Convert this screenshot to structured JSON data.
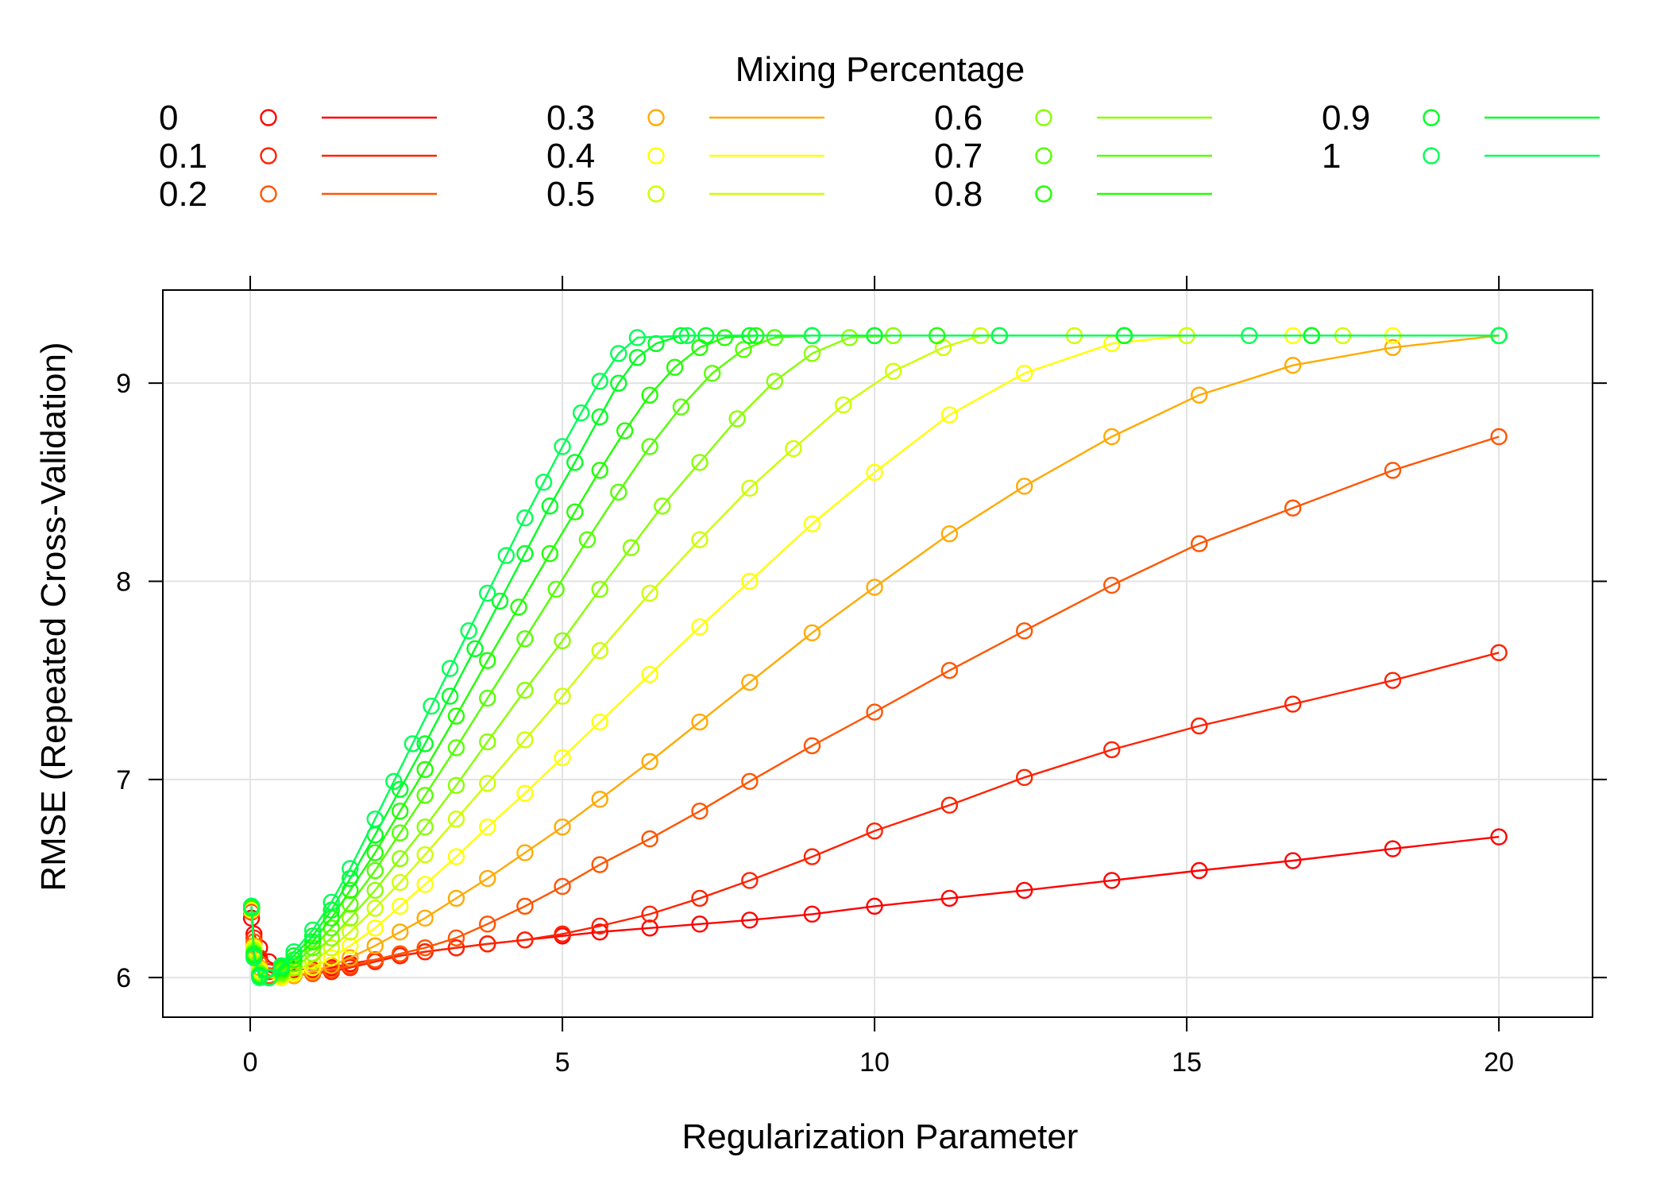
{
  "chart_data": {
    "type": "line",
    "title": "",
    "xlabel": "Regularization Parameter",
    "ylabel": "RMSE (Repeated Cross-Validation)",
    "xlim": [
      -1.4,
      21.5
    ],
    "ylim": [
      5.8,
      9.47
    ],
    "x_ticks": [
      0,
      5,
      10,
      15,
      20
    ],
    "y_ticks": [
      6,
      7,
      8,
      9
    ],
    "grid": true,
    "markers": "open-circle",
    "legend": {
      "title": "Mixing Percentage",
      "placement": "top",
      "columns": 4,
      "entries": [
        "0",
        "0.1",
        "0.2",
        "0.3",
        "0.4",
        "0.5",
        "0.6",
        "0.7",
        "0.8",
        "0.9",
        "1"
      ]
    },
    "series": [
      {
        "name": "0",
        "color": "#FF0000",
        "x": [
          0.02,
          0.06,
          0.15,
          0.3,
          0.5,
          0.7,
          1.0,
          1.3,
          1.6,
          2.0,
          2.4,
          2.8,
          3.3,
          3.8,
          4.4,
          5.0,
          5.6,
          6.4,
          7.2,
          8.0,
          9.0,
          10.0,
          11.2,
          12.4,
          13.8,
          15.2,
          16.7,
          18.3,
          20.0
        ],
        "values": [
          6.3,
          6.22,
          6.15,
          6.08,
          6.05,
          6.04,
          6.04,
          6.05,
          6.07,
          6.09,
          6.11,
          6.13,
          6.15,
          6.17,
          6.19,
          6.21,
          6.23,
          6.25,
          6.27,
          6.29,
          6.32,
          6.36,
          6.4,
          6.44,
          6.49,
          6.54,
          6.59,
          6.65,
          6.71
        ]
      },
      {
        "name": "0.1",
        "color": "#FF2200",
        "x": [
          0.02,
          0.06,
          0.15,
          0.3,
          0.5,
          0.7,
          1.0,
          1.3,
          1.6,
          2.0,
          2.4,
          2.8,
          3.3,
          3.8,
          4.4,
          5.0,
          5.6,
          6.4,
          7.2,
          8.0,
          9.0,
          10.0,
          11.2,
          12.4,
          13.8,
          15.2,
          16.7,
          18.3,
          20.0
        ],
        "values": [
          6.33,
          6.2,
          6.1,
          6.03,
          6.01,
          6.01,
          6.02,
          6.03,
          6.05,
          6.08,
          6.11,
          6.13,
          6.15,
          6.17,
          6.19,
          6.22,
          6.26,
          6.32,
          6.4,
          6.49,
          6.61,
          6.74,
          6.87,
          7.01,
          7.15,
          7.27,
          7.38,
          7.5,
          7.64
        ]
      },
      {
        "name": "0.2",
        "color": "#FF5500",
        "x": [
          0.02,
          0.06,
          0.15,
          0.3,
          0.5,
          0.7,
          1.0,
          1.3,
          1.6,
          2.0,
          2.4,
          2.8,
          3.3,
          3.8,
          4.4,
          5.0,
          5.6,
          6.4,
          7.2,
          8.0,
          9.0,
          10.0,
          11.2,
          12.4,
          13.8,
          15.2,
          16.7,
          18.3,
          20.0
        ],
        "values": [
          6.33,
          6.18,
          6.07,
          6.01,
          6.0,
          6.01,
          6.02,
          6.04,
          6.06,
          6.09,
          6.12,
          6.15,
          6.2,
          6.27,
          6.36,
          6.46,
          6.57,
          6.7,
          6.84,
          6.99,
          7.17,
          7.34,
          7.55,
          7.75,
          7.98,
          8.19,
          8.37,
          8.56,
          8.73
        ]
      },
      {
        "name": "0.3",
        "color": "#FFAA00",
        "x": [
          0.02,
          0.06,
          0.15,
          0.3,
          0.5,
          0.7,
          1.0,
          1.3,
          1.6,
          2.0,
          2.4,
          2.8,
          3.3,
          3.8,
          4.4,
          5.0,
          5.6,
          6.4,
          7.2,
          8.0,
          9.0,
          10.0,
          11.2,
          12.4,
          13.8,
          15.2,
          16.7,
          18.3,
          20.0
        ],
        "values": [
          6.34,
          6.16,
          6.05,
          6.0,
          6.0,
          6.01,
          6.03,
          6.06,
          6.1,
          6.16,
          6.23,
          6.3,
          6.4,
          6.5,
          6.63,
          6.76,
          6.9,
          7.09,
          7.29,
          7.49,
          7.74,
          7.97,
          8.24,
          8.48,
          8.73,
          8.94,
          9.09,
          9.18,
          9.24
        ]
      },
      {
        "name": "0.4",
        "color": "#FFFF00",
        "x": [
          0.02,
          0.06,
          0.15,
          0.3,
          0.5,
          0.7,
          1.0,
          1.3,
          1.6,
          2.0,
          2.4,
          2.8,
          3.3,
          3.8,
          4.4,
          5.0,
          5.6,
          6.4,
          7.2,
          8.0,
          9.0,
          10.0,
          11.2,
          12.4,
          13.8,
          15.0,
          16.7,
          18.3,
          20.0
        ],
        "values": [
          6.34,
          6.15,
          6.04,
          6.0,
          6.0,
          6.02,
          6.05,
          6.1,
          6.16,
          6.25,
          6.36,
          6.47,
          6.61,
          6.76,
          6.93,
          7.11,
          7.29,
          7.53,
          7.77,
          8.0,
          8.29,
          8.55,
          8.84,
          9.05,
          9.2,
          9.24,
          9.24,
          9.24,
          9.24
        ]
      },
      {
        "name": "0.5",
        "color": "#CCFF00",
        "x": [
          0.02,
          0.06,
          0.15,
          0.3,
          0.5,
          0.7,
          1.0,
          1.3,
          1.6,
          2.0,
          2.4,
          2.8,
          3.3,
          3.8,
          4.4,
          5.0,
          5.6,
          6.4,
          7.2,
          8.0,
          8.7,
          9.5,
          10.3,
          11.1,
          11.7,
          13.2,
          15.0,
          17.5,
          20.0
        ],
        "values": [
          6.35,
          6.14,
          6.03,
          6.0,
          6.01,
          6.03,
          6.08,
          6.15,
          6.23,
          6.35,
          6.48,
          6.62,
          6.8,
          6.98,
          7.2,
          7.42,
          7.65,
          7.94,
          8.21,
          8.47,
          8.67,
          8.89,
          9.06,
          9.18,
          9.24,
          9.24,
          9.24,
          9.24,
          9.24
        ]
      },
      {
        "name": "0.6",
        "color": "#88FF00",
        "x": [
          0.02,
          0.06,
          0.15,
          0.3,
          0.5,
          0.7,
          1.0,
          1.3,
          1.6,
          2.0,
          2.4,
          2.8,
          3.3,
          3.8,
          4.4,
          5.0,
          5.6,
          6.1,
          6.6,
          7.2,
          7.8,
          8.4,
          9.0,
          9.6,
          10.3,
          12.0,
          14.0,
          17.0,
          20.0
        ],
        "values": [
          6.35,
          6.13,
          6.02,
          6.0,
          6.02,
          6.05,
          6.12,
          6.2,
          6.3,
          6.44,
          6.6,
          6.76,
          6.97,
          7.19,
          7.45,
          7.7,
          7.96,
          8.17,
          8.38,
          8.6,
          8.82,
          9.01,
          9.15,
          9.23,
          9.24,
          9.24,
          9.24,
          9.24,
          9.24
        ]
      },
      {
        "name": "0.7",
        "color": "#55FF00",
        "x": [
          0.02,
          0.06,
          0.15,
          0.3,
          0.5,
          0.7,
          1.0,
          1.3,
          1.6,
          2.0,
          2.4,
          2.8,
          3.3,
          3.8,
          4.4,
          4.9,
          5.4,
          5.9,
          6.4,
          6.9,
          7.4,
          7.9,
          8.4,
          9.0,
          10.0,
          12.0,
          14.0,
          17.0,
          20.0
        ],
        "values": [
          6.35,
          6.12,
          6.02,
          6.0,
          6.03,
          6.07,
          6.15,
          6.25,
          6.37,
          6.54,
          6.73,
          6.92,
          7.16,
          7.41,
          7.71,
          7.96,
          8.21,
          8.45,
          8.68,
          8.88,
          9.05,
          9.17,
          9.23,
          9.24,
          9.24,
          9.24,
          9.24,
          9.24,
          9.24
        ]
      },
      {
        "name": "0.8",
        "color": "#22FF00",
        "x": [
          0.02,
          0.06,
          0.15,
          0.3,
          0.5,
          0.7,
          1.0,
          1.3,
          1.6,
          2.0,
          2.4,
          2.8,
          3.3,
          3.8,
          4.3,
          4.8,
          5.2,
          5.6,
          6.0,
          6.4,
          6.8,
          7.2,
          7.6,
          8.1,
          9.0,
          11.0,
          14.0,
          17.0,
          20.0
        ],
        "values": [
          6.35,
          6.12,
          6.01,
          6.0,
          6.04,
          6.09,
          6.18,
          6.3,
          6.44,
          6.63,
          6.84,
          7.05,
          7.32,
          7.6,
          7.87,
          8.14,
          8.35,
          8.56,
          8.76,
          8.94,
          9.08,
          9.18,
          9.23,
          9.24,
          9.24,
          9.24,
          9.24,
          9.24,
          9.24
        ]
      },
      {
        "name": "0.9",
        "color": "#00FF22",
        "x": [
          0.02,
          0.06,
          0.15,
          0.3,
          0.5,
          0.7,
          1.0,
          1.3,
          1.6,
          2.0,
          2.4,
          2.8,
          3.2,
          3.6,
          4.0,
          4.4,
          4.8,
          5.2,
          5.6,
          5.9,
          6.2,
          6.5,
          6.9,
          7.3,
          8.0,
          10.0,
          14.0,
          17.0,
          20.0
        ],
        "values": [
          6.36,
          6.11,
          6.01,
          6.0,
          6.05,
          6.11,
          6.21,
          6.34,
          6.5,
          6.72,
          6.95,
          7.18,
          7.42,
          7.66,
          7.9,
          8.14,
          8.38,
          8.6,
          8.83,
          9.0,
          9.13,
          9.2,
          9.24,
          9.24,
          9.24,
          9.24,
          9.24,
          9.24,
          9.24
        ]
      },
      {
        "name": "1",
        "color": "#00FF55",
        "x": [
          0.02,
          0.06,
          0.15,
          0.3,
          0.5,
          0.7,
          1.0,
          1.3,
          1.6,
          2.0,
          2.3,
          2.6,
          2.9,
          3.2,
          3.5,
          3.8,
          4.1,
          4.4,
          4.7,
          5.0,
          5.3,
          5.6,
          5.9,
          6.2,
          7.0,
          9.0,
          12.0,
          16.0,
          20.0
        ],
        "values": [
          6.36,
          6.1,
          6.0,
          6.0,
          6.06,
          6.13,
          6.24,
          6.38,
          6.55,
          6.8,
          6.99,
          7.18,
          7.37,
          7.56,
          7.75,
          7.94,
          8.13,
          8.32,
          8.5,
          8.68,
          8.85,
          9.01,
          9.15,
          9.23,
          9.24,
          9.24,
          9.24,
          9.24,
          9.24
        ]
      }
    ]
  }
}
